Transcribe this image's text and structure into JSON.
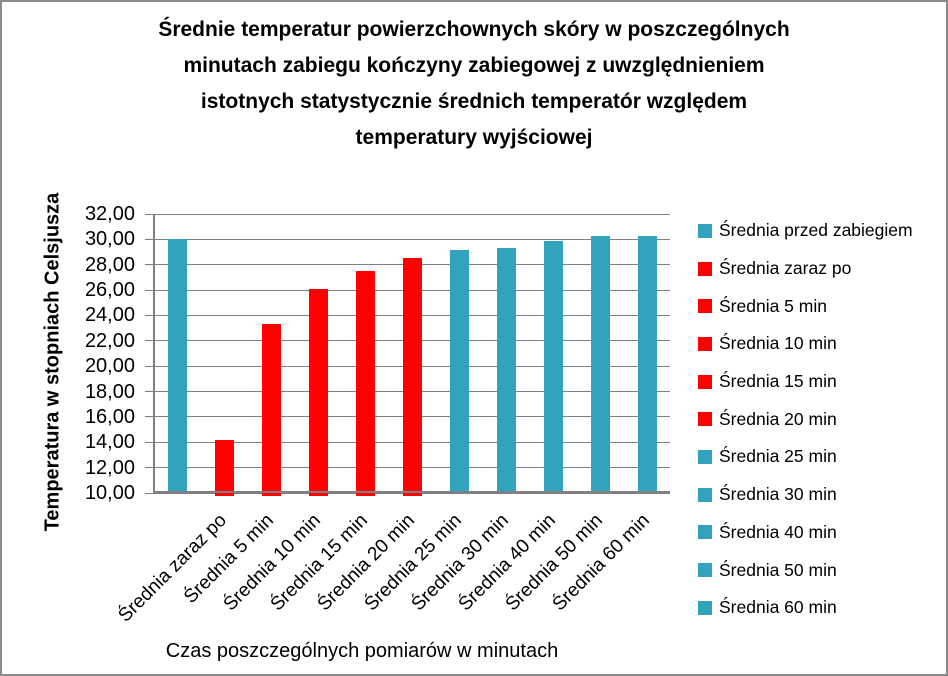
{
  "chart_data": {
    "type": "bar",
    "title_lines": [
      "Średnie temperatur powierzchownych skóry w poszczególnych",
      "minutach zabiegu kończyny zabiegowej z uwzględnieniem",
      "istotnych statystycznie średnich temperatór względem",
      "temperatury wyjściowej"
    ],
    "xlabel": "Czas poszczególnych pomiarów w minutach",
    "ylabel": "Temperatura w stopniach Celsjusza",
    "ylim": [
      10,
      32
    ],
    "y_tick_step": 2,
    "y_ticks": [
      "32,00",
      "30,00",
      "28,00",
      "26,00",
      "24,00",
      "22,00",
      "20,00",
      "18,00",
      "16,00",
      "14,00",
      "12,00",
      "10,00"
    ],
    "grid": true,
    "legend_position": "right",
    "colors": {
      "teal": "#31a3bd",
      "red": "#fe0000",
      "grid": "#808080",
      "frame": "#8a8a8a",
      "text": "#000000"
    },
    "series": [
      {
        "legend": "Średnia  przed zabiegiem",
        "x_label": "",
        "value": 30.0,
        "color_key": "teal"
      },
      {
        "legend": "Średnia zaraz po",
        "x_label": "Średnia zaraz po",
        "value": 14.2,
        "color_key": "red"
      },
      {
        "legend": "Średnia 5 min",
        "x_label": "Średnia 5 min",
        "value": 23.3,
        "color_key": "red"
      },
      {
        "legend": "Średnia 10 min",
        "x_label": "Średnia 10 min",
        "value": 26.1,
        "color_key": "red"
      },
      {
        "legend": "Średnia 15 min",
        "x_label": "Średnia 15 min",
        "value": 27.5,
        "color_key": "red"
      },
      {
        "legend": "Średnia 20 min",
        "x_label": "Średnia 20 min",
        "value": 28.5,
        "color_key": "red"
      },
      {
        "legend": "Średnia 25 min",
        "x_label": "Średnia 25 min",
        "value": 29.2,
        "color_key": "teal"
      },
      {
        "legend": "Średnia 30 min",
        "x_label": "Średnia 30 min",
        "value": 29.3,
        "color_key": "teal"
      },
      {
        "legend": "Średnia 40 min",
        "x_label": "Średnia 40 min",
        "value": 29.9,
        "color_key": "teal"
      },
      {
        "legend": "Średnia 50 min",
        "x_label": "Średnia 50 min",
        "value": 30.3,
        "color_key": "teal"
      },
      {
        "legend": "Średnia 60 min",
        "x_label": "Średnia 60 min",
        "value": 30.3,
        "color_key": "teal"
      }
    ]
  }
}
